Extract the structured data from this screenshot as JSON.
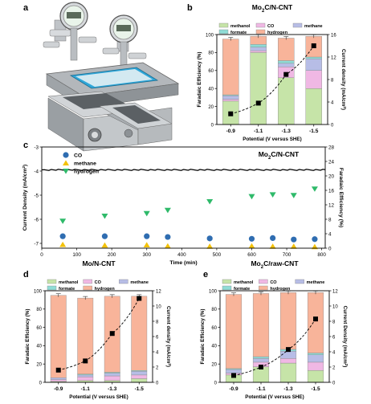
{
  "panel_labels": {
    "a": "a",
    "b": "b",
    "c": "c",
    "d": "d",
    "e": "e"
  },
  "colors": {
    "methanol": "#c6e4a8",
    "CO": "#f0b8e4",
    "methane": "#b7bde6",
    "formate": "#8fdcd6",
    "hydrogen": "#f8b49a",
    "current_density_marker": "#000000",
    "CO_marker": "#2f6db1",
    "methane_marker": "#f3c20a",
    "hydrogen_marker": "#2fba6a"
  },
  "chart_data": [
    {
      "id": "b",
      "type": "bar",
      "title": "Mo₂C/N-CNT",
      "xlabel": "Potential (V versus SHE)",
      "ylabel": "Faradaic Efficiency (%)",
      "y2label": "Current density (mA/cm²)",
      "categories": [
        "-0.9",
        "-1.1",
        "-1.3",
        "-1.5"
      ],
      "ylim": [
        0,
        100
      ],
      "y2lim": [
        0,
        16
      ],
      "yticks": [
        "0",
        "20",
        "40",
        "60",
        "80",
        "100"
      ],
      "y2ticks": [
        "0",
        "4",
        "8",
        "12",
        "16"
      ],
      "legend": [
        "methanol",
        "CO",
        "methane",
        "formate",
        "hydrogen"
      ],
      "legend_position": "top",
      "series": [
        {
          "name": "methanol",
          "values": [
            26,
            80,
            52,
            40
          ]
        },
        {
          "name": "CO",
          "values": [
            2,
            2,
            12,
            20
          ]
        },
        {
          "name": "methane",
          "values": [
            4,
            4,
            4,
            13
          ]
        },
        {
          "name": "formate",
          "values": [
            1,
            3,
            3,
            2
          ]
        },
        {
          "name": "hydrogen",
          "values": [
            62,
            9,
            25,
            23
          ]
        }
      ],
      "current_density": [
        1.9,
        3.8,
        8.9,
        14
      ]
    },
    {
      "id": "c",
      "type": "scatter",
      "title": "Mo₂C/N-CNT",
      "xlabel": "Time (min)",
      "ylabel": "Current Density (mA/cm²)",
      "y2label": "Faradaic Efficiency (%)",
      "xlim": [
        0,
        810
      ],
      "xticks": [
        "0",
        "100",
        "200",
        "300",
        "400",
        "500",
        "600",
        "700",
        "800"
      ],
      "ylim": [
        -7.2,
        -3
      ],
      "yticks": [
        "-7",
        "-6",
        "-5",
        "-4",
        "-3"
      ],
      "y2lim": [
        0,
        28
      ],
      "y2ticks": [
        "0",
        "4",
        "8",
        "12",
        "16",
        "20",
        "24",
        "28"
      ],
      "legend": [
        "CO",
        "methane",
        "hydrogen"
      ],
      "legend_position": "top-left",
      "current_density_line": -3.95,
      "series": [
        {
          "name": "CO",
          "x": [
            60,
            180,
            300,
            360,
            480,
            600,
            660,
            720,
            780
          ],
          "y": [
            3.3,
            3.3,
            3.3,
            3.1,
            2.7,
            2.6,
            2.8,
            2.4,
            2.5
          ]
        },
        {
          "name": "methane",
          "x": [
            60,
            180,
            300,
            360,
            480,
            600,
            660,
            720,
            780
          ],
          "y": [
            1.0,
            0.8,
            0.9,
            0.6,
            0.5,
            0.6,
            0.5,
            0.5,
            0.4
          ]
        },
        {
          "name": "hydrogen",
          "x": [
            60,
            180,
            300,
            360,
            480,
            600,
            660,
            720,
            780
          ],
          "y": [
            7.5,
            8.9,
            9.6,
            10.5,
            12.9,
            14.3,
            14.8,
            14.6,
            16.4
          ]
        }
      ]
    },
    {
      "id": "d",
      "type": "bar",
      "title": "Mo/N-CNT",
      "xlabel": "Potential (V versus SHE)",
      "ylabel": "Faradaic Efficiency (%)",
      "y2label": "Current density (mA/cm²)",
      "categories": [
        "-0.9",
        "-1.1",
        "-1.3",
        "-1.5"
      ],
      "ylim": [
        0,
        100
      ],
      "y2lim": [
        0,
        12
      ],
      "yticks": [
        "0",
        "20",
        "40",
        "60",
        "80",
        "100"
      ],
      "y2ticks": [
        "0",
        "2",
        "4",
        "6",
        "8",
        "10",
        "12"
      ],
      "legend": [
        "methanol",
        "CO",
        "methane",
        "formate",
        "hydrogen"
      ],
      "legend_position": "top",
      "series": [
        {
          "name": "methanol",
          "values": [
            1,
            2,
            2,
            4
          ]
        },
        {
          "name": "CO",
          "values": [
            2,
            4,
            5,
            4
          ]
        },
        {
          "name": "methane",
          "values": [
            2,
            2,
            3,
            4
          ]
        },
        {
          "name": "formate",
          "values": [
            0,
            1,
            1,
            1
          ]
        },
        {
          "name": "hydrogen",
          "values": [
            90,
            83,
            83,
            81
          ]
        }
      ],
      "current_density": [
        1.6,
        2.8,
        6.4,
        11
      ]
    },
    {
      "id": "e",
      "type": "bar",
      "title": "Mo₂C/raw-CNT",
      "xlabel": "Potential (V versus SHE)",
      "ylabel": "Faradaic Efficiency (%)",
      "y2label": "Current Density (mA/cm²)",
      "categories": [
        "-0.9",
        "-1.1",
        "-1.3",
        "-1.5"
      ],
      "ylim": [
        0,
        100
      ],
      "y2lim": [
        0,
        12
      ],
      "yticks": [
        "0",
        "20",
        "40",
        "60",
        "80",
        "100"
      ],
      "y2ticks": [
        "0",
        "2",
        "4",
        "6",
        "8",
        "10",
        "12"
      ],
      "legend": [
        "methanol",
        "CO",
        "methane",
        "formate",
        "hydrogen"
      ],
      "legend_position": "top",
      "series": [
        {
          "name": "methanol",
          "values": [
            8,
            17,
            21,
            13
          ]
        },
        {
          "name": "CO",
          "values": [
            2,
            5,
            5,
            9
          ]
        },
        {
          "name": "methane",
          "values": [
            4,
            4,
            8,
            8
          ]
        },
        {
          "name": "formate",
          "values": [
            1,
            2,
            2,
            2
          ]
        },
        {
          "name": "hydrogen",
          "values": [
            81,
            69,
            62,
            66
          ]
        }
      ],
      "current_density": [
        0.9,
        2.0,
        4.3,
        8.3
      ]
    }
  ]
}
